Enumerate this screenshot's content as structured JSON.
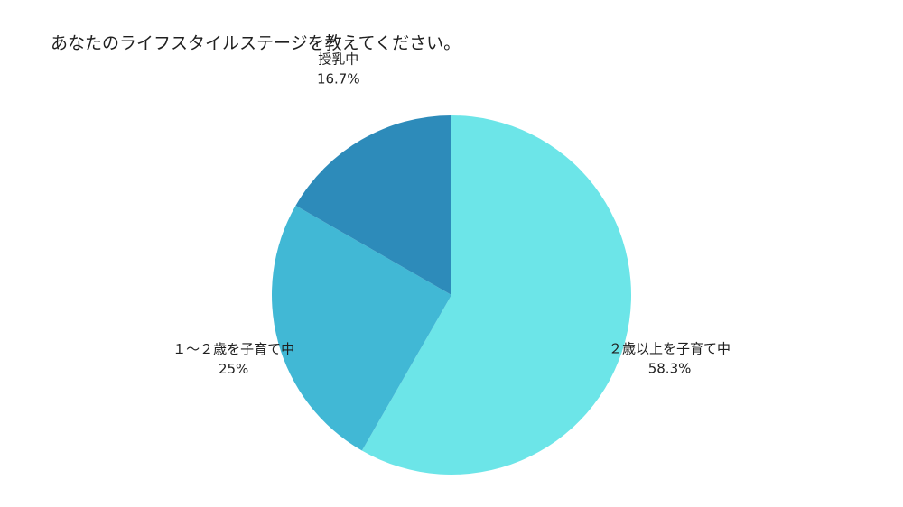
{
  "chart_data": {
    "type": "pie",
    "title": "あなたのライフスタイルステージを教えてください。",
    "start": "top",
    "direction": "clockwise",
    "slices": [
      {
        "label": "２歳以上を子育て中",
        "value": 58.3,
        "value_label": "58.3%",
        "color": "#6ce5e8"
      },
      {
        "label": "１～２歳を子育て中",
        "value": 25,
        "value_label": "25%",
        "color": "#41b8d5"
      },
      {
        "label": "授乳中",
        "value": 16.7,
        "value_label": "16.7%",
        "color": "#2d8bba"
      }
    ]
  }
}
